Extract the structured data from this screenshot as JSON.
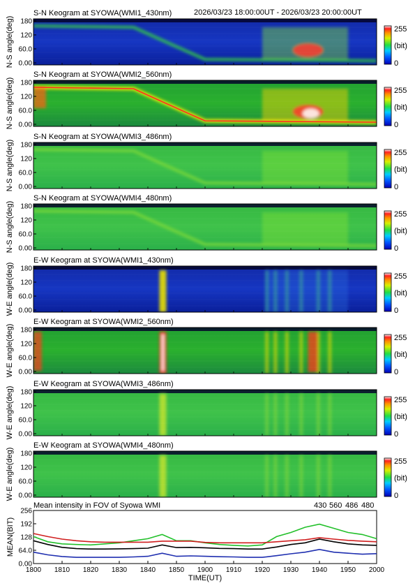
{
  "header": {
    "time_range": "2026/03/23 18:00:00UT - 2026/03/23 20:00:00UT"
  },
  "colorbar": {
    "max_label": "255",
    "unit_label": "(bit)",
    "min_label": "0"
  },
  "keograms": [
    {
      "title": "S-N Keogram at SYOWA(WMI1_430nm)",
      "ylabel": "N-S angle(deg)",
      "yticks": [
        "180",
        "120",
        "60.0",
        "0.00"
      ],
      "intensity": "low",
      "features": "faint blue background; equatorward-moving arc near 1845-1855; bright multi-arc activity 1920-1945"
    },
    {
      "title": "S-N Keogram at SYOWA(WMI2_560nm)",
      "ylabel": "N-S angle(deg)",
      "yticks": [
        "180",
        "120",
        "60.0",
        "0.00"
      ],
      "intensity": "high",
      "features": "bright discrete arc descending from 170 to 10 deg; saturated aurora 1925-1950"
    },
    {
      "title": "S-N Keogram at SYOWA(WMI3_486nm)",
      "ylabel": "N-S angle(deg)",
      "yticks": [
        "180",
        "120",
        "60.0",
        "0.00"
      ],
      "intensity": "medium",
      "features": "green background with faint arc"
    },
    {
      "title": "S-N Keogram at SYOWA(WMI4_480nm)",
      "ylabel": "N-S angle(deg)",
      "yticks": [
        "180",
        "120",
        "60.0",
        "0.00"
      ],
      "intensity": "medium",
      "features": "green background with faint arc"
    },
    {
      "title": "E-W Keogram at SYOWA(WMI1_430nm)",
      "ylabel": "W-E angle(deg)",
      "yticks": [
        "180",
        "120",
        "60.0",
        "0.00"
      ],
      "intensity": "low",
      "features": "vertical bright band at 1848; patches 1920-1945"
    },
    {
      "title": "E-W Keogram at SYOWA(WMI2_560nm)",
      "ylabel": "W-E angle(deg)",
      "yticks": [
        "180",
        "120",
        "60.0",
        "0.00"
      ],
      "intensity": "high",
      "features": "saturated vertical band at 1848; bright columns 1920-1945"
    },
    {
      "title": "E-W Keogram at SYOWA(WMI3_486nm)",
      "ylabel": "W-E angle(deg)",
      "yticks": [
        "180",
        "120",
        "60.0",
        "0.00"
      ],
      "intensity": "medium",
      "features": "green background, faint vertical bands"
    },
    {
      "title": "E-W Keogram at SYOWA(WMI4_480nm)",
      "ylabel": "W-E angle(deg)",
      "yticks": [
        "180",
        "120",
        "60.0",
        "0.00"
      ],
      "intensity": "medium",
      "features": "green background, vertical bands at 1848 and 1920-1945"
    }
  ],
  "chart_data": {
    "type": "line",
    "title": "Mean intensity in FOV of Syowa WMI",
    "xlabel": "TIME(UT)",
    "ylabel": "MEAN(BIT)",
    "x_tick_labels": [
      "1800",
      "1810",
      "1820",
      "1830",
      "1840",
      "1850",
      "1900",
      "1910",
      "1920",
      "1930",
      "1940",
      "1950",
      "2000"
    ],
    "y_tick_labels": [
      "0.00",
      "64.0",
      "128",
      "192",
      "256"
    ],
    "ylim": [
      0,
      256
    ],
    "x": [
      0,
      5,
      10,
      15,
      20,
      25,
      30,
      35,
      40,
      45,
      50,
      55,
      60,
      65,
      70,
      75,
      80,
      85,
      90,
      95,
      100,
      105,
      110,
      115,
      120
    ],
    "series": [
      {
        "name": "430",
        "color": "#1f2fb0",
        "values": [
          55,
          42,
          34,
          30,
          30,
          30,
          30,
          32,
          35,
          50,
          35,
          37,
          35,
          33,
          32,
          30,
          30,
          38,
          47,
          55,
          68,
          55,
          50,
          45,
          48
        ]
      },
      {
        "name": "560",
        "color": "#22c02a",
        "values": [
          130,
          105,
          95,
          92,
          90,
          95,
          100,
          110,
          120,
          140,
          110,
          110,
          100,
          92,
          88,
          85,
          90,
          130,
          150,
          175,
          190,
          170,
          150,
          140,
          120
        ]
      },
      {
        "name": "486",
        "color": "#d01f1f",
        "values": [
          145,
          130,
          118,
          110,
          105,
          103,
          103,
          103,
          103,
          108,
          108,
          108,
          102,
          100,
          100,
          100,
          100,
          105,
          110,
          115,
          125,
          118,
          112,
          108,
          105
        ]
      },
      {
        "name": "480",
        "color": "#000000",
        "values": [
          110,
          92,
          78,
          72,
          70,
          70,
          71,
          72,
          74,
          90,
          77,
          78,
          76,
          73,
          72,
          70,
          70,
          80,
          92,
          100,
          118,
          105,
          95,
          90,
          88
        ]
      }
    ]
  }
}
